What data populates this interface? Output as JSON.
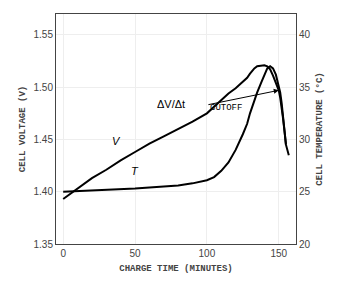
{
  "chart_data": {
    "type": "line",
    "xlabel": "CHARGE TIME (MINUTES)",
    "ylabel": "CELL VOLTAGE (V)",
    "y2label": "CELL TEMPERATURE (°C)",
    "xlim": [
      -5,
      162
    ],
    "xticks": [
      0,
      50,
      100,
      150
    ],
    "ylim": [
      1.35,
      1.57
    ],
    "yticks": [
      1.35,
      {
        "value": 1.4,
        "label": "1.40"
      },
      1.45,
      {
        "value": 1.5,
        "label": "1.50"
      },
      1.55
    ],
    "y2lim": [
      20,
      42
    ],
    "y2ticks": [
      20,
      25,
      30,
      35,
      40
    ],
    "grid": true,
    "series": [
      {
        "color": "#000000",
        "x": [
          0,
          5,
          10,
          20,
          30,
          40,
          50,
          60,
          70,
          80,
          90,
          100,
          110,
          115,
          120,
          125,
          128,
          130,
          133,
          135,
          138,
          140,
          142,
          144,
          146,
          148,
          150,
          151,
          152,
          153,
          154,
          155
        ],
        "values": [
          1.393,
          1.398,
          1.403,
          1.413,
          1.421,
          1.43,
          1.438,
          1.446,
          1.453,
          1.46,
          1.467,
          1.475,
          1.488,
          1.494,
          1.499,
          1.505,
          1.509,
          1.513,
          1.518,
          1.52,
          1.521,
          1.521,
          1.52,
          1.517,
          1.511,
          1.504,
          1.497,
          1.49,
          1.482,
          1.47,
          1.458,
          1.445
        ]
      },
      {
        "color": "#000000",
        "axis": "y2",
        "x": [
          0,
          10,
          20,
          30,
          40,
          50,
          60,
          70,
          80,
          90,
          100,
          105,
          110,
          115,
          120,
          125,
          128,
          130,
          133,
          135,
          138,
          140,
          142,
          144,
          146,
          148,
          150,
          151,
          152,
          153,
          154,
          155,
          157
        ],
        "values": [
          25.0,
          25.05,
          25.1,
          25.15,
          25.2,
          25.3,
          25.4,
          25.5,
          25.6,
          25.8,
          26.1,
          26.4,
          27.0,
          27.8,
          29.0,
          30.5,
          31.5,
          32.5,
          33.8,
          34.5,
          35.5,
          36.2,
          36.8,
          37.0,
          36.8,
          36.2,
          35.2,
          34.5,
          33.5,
          32.2,
          30.8,
          29.5,
          28.5
        ]
      }
    ],
    "annotations": [
      {
        "text": "ΔV/Δt",
        "x": 86,
        "y": 1.484
      },
      {
        "text": "CUTOFF",
        "x": 101,
        "y": 1.48
      },
      {
        "text": "V",
        "x": 37,
        "y": 1.441
      },
      {
        "text": "T",
        "x": 50,
        "y": 1.412
      }
    ],
    "arrow": {
      "x_start": 100,
      "y_start": 1.483,
      "x_end": 150,
      "y_end": 1.497
    }
  }
}
